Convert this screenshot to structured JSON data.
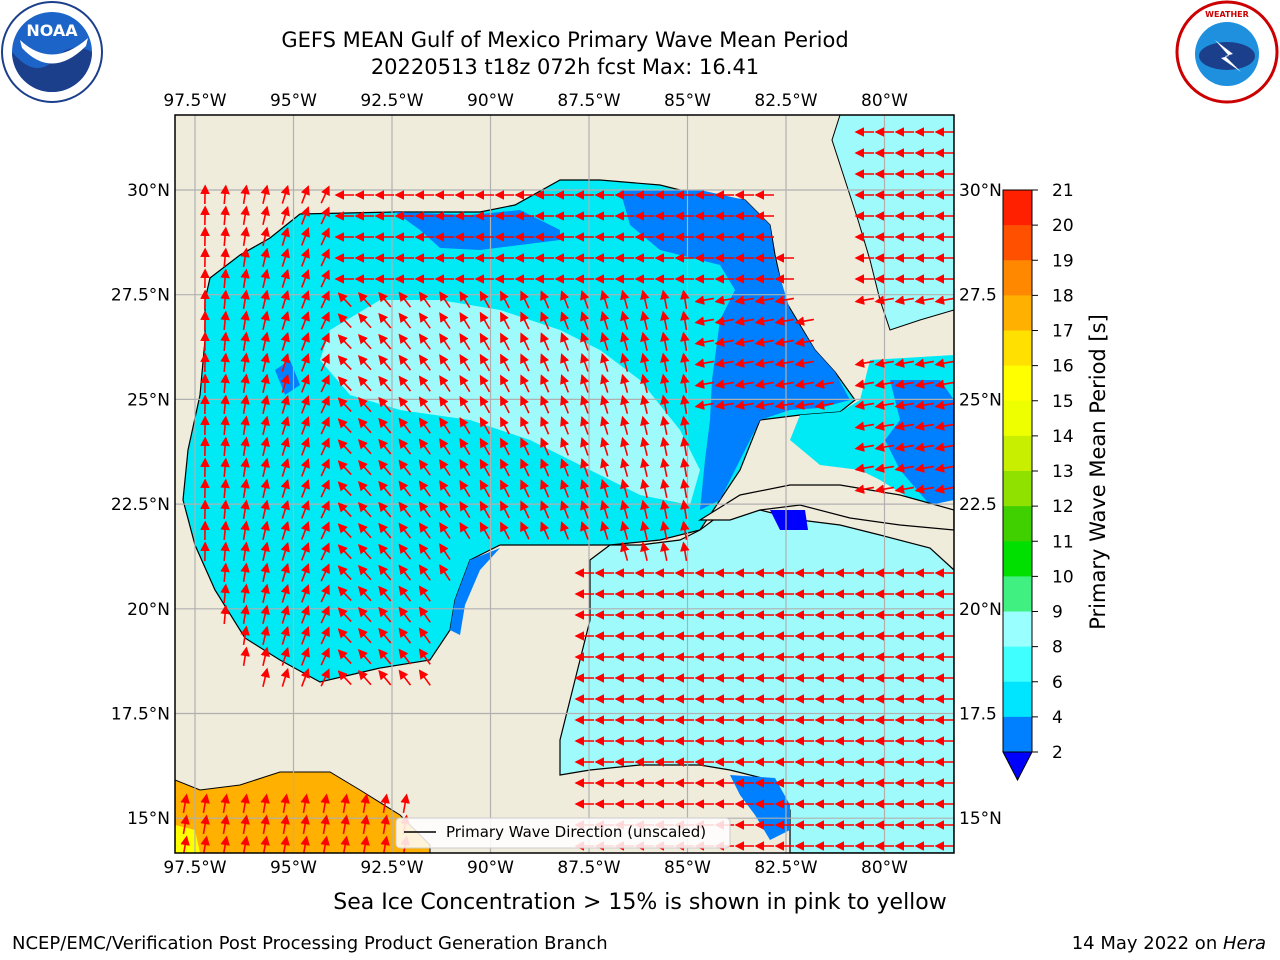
{
  "title": {
    "line1": "GEFS MEAN Gulf of Mexico Primary Wave Mean Period",
    "line2": "20220513 t18z 072h fcst   Max: 16.41"
  },
  "map": {
    "lon_ticks": [
      "97.5°W",
      "95°W",
      "92.5°W",
      "90°W",
      "87.5°W",
      "85°W",
      "82.5°W",
      "80°W"
    ],
    "lat_ticks": [
      "30°N",
      "27.5°N",
      "25°N",
      "22.5°N",
      "20°N",
      "17.5°N",
      "15°N"
    ],
    "lat_ticks_right": [
      "30°N",
      "27.5",
      "25°N",
      "22.5",
      "20°N",
      "17.5",
      "15°N"
    ],
    "legend_label": "Primary Wave Direction (unscaled)",
    "colors": {
      "land": "#efecdc",
      "arrow": "#ff0000",
      "grid": "#b0b0b0"
    }
  },
  "colorbar": {
    "label": "Primary Wave Mean Period [s]",
    "ticks": [
      "2",
      "4",
      "6",
      "8",
      "9",
      "10",
      "11",
      "12",
      "13",
      "14",
      "15",
      "16",
      "17",
      "18",
      "19",
      "20",
      "21"
    ],
    "colors": [
      "#0080ff",
      "#00e5ff",
      "#40ffff",
      "#99ffff",
      "#40f080",
      "#00e000",
      "#40d000",
      "#90e000",
      "#c8ee00",
      "#eeff00",
      "#ffff00",
      "#ffe000",
      "#ffb000",
      "#ff8800",
      "#ff5000",
      "#ff2000"
    ],
    "under_color": "#0000ff"
  },
  "footer": {
    "note": "Sea Ice Concentration > 15% is shown in pink to yellow",
    "left": "NCEP/EMC/Verification Post Processing Product Generation Branch",
    "date": "14 May 2022 on ",
    "host": "Hera"
  },
  "logos": {
    "noaa": "NOAA",
    "nws": "NATIONAL WEATHER SERVICE"
  }
}
